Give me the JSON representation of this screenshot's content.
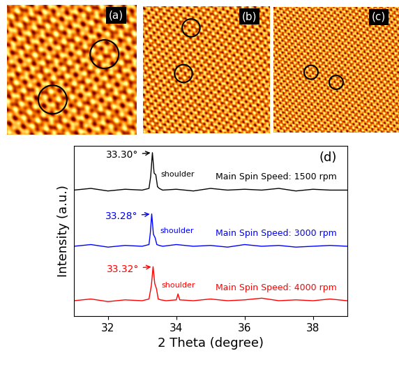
{
  "panels": [
    {
      "label": "(a)"
    },
    {
      "label": "(b)"
    },
    {
      "label": "(c)"
    }
  ],
  "chart_data": {
    "type": "line",
    "panel_label": "(d)",
    "x_label": "2 Theta (degree)",
    "y_label": "Intensity (a.u.)",
    "xlim": [
      31,
      39
    ],
    "xticks": [
      32,
      34,
      36,
      38
    ],
    "ylim": [
      0,
      10
    ],
    "tick_labels": "x",
    "grid": false,
    "series": [
      {
        "name": "Main Spin Speed: 1500 rpm",
        "color": "#000000",
        "peak_label": {
          "value": 33.3,
          "label": "33.30°"
        },
        "note": "shoulder",
        "x": [
          31.0,
          31.5,
          32.0,
          32.5,
          33.0,
          33.2,
          33.25,
          33.3,
          33.35,
          33.4,
          33.45,
          33.5,
          33.6,
          34.0,
          34.5,
          35.0,
          35.5,
          36.0,
          36.5,
          37.0,
          37.5,
          38.0,
          38.5,
          39.0
        ],
        "values": [
          7.4,
          7.5,
          7.35,
          7.45,
          7.4,
          7.5,
          8.2,
          9.6,
          8.4,
          8.3,
          7.6,
          7.5,
          7.4,
          7.45,
          7.35,
          7.5,
          7.4,
          7.45,
          7.4,
          7.5,
          7.35,
          7.45,
          7.4,
          7.4
        ]
      },
      {
        "name": "Main Spin Speed: 3000 rpm",
        "color": "#0000ff",
        "peak_label": {
          "value": 33.28,
          "label": "33.28°"
        },
        "note": "shoulder",
        "x": [
          31.0,
          31.5,
          32.0,
          32.5,
          33.0,
          33.2,
          33.24,
          33.28,
          33.33,
          33.38,
          33.43,
          33.5,
          33.6,
          34.0,
          34.5,
          35.0,
          35.5,
          36.0,
          36.5,
          37.0,
          37.5,
          38.0,
          38.5,
          39.0
        ],
        "values": [
          4.1,
          4.2,
          4.05,
          4.15,
          4.1,
          4.2,
          4.9,
          6.0,
          4.8,
          4.6,
          4.2,
          4.15,
          4.1,
          4.2,
          4.1,
          4.15,
          4.05,
          4.2,
          4.1,
          4.15,
          4.05,
          4.1,
          4.15,
          4.1
        ]
      },
      {
        "name": "Main Spin Speed: 4000 rpm",
        "color": "#ff0000",
        "peak_label": {
          "value": 33.32,
          "label": "33.32°"
        },
        "note": "shoulder",
        "x": [
          31.0,
          31.5,
          32.0,
          32.5,
          33.0,
          33.2,
          33.27,
          33.32,
          33.37,
          33.42,
          33.47,
          33.55,
          33.7,
          34.0,
          34.05,
          34.1,
          34.5,
          35.0,
          35.5,
          36.0,
          36.5,
          37.0,
          37.5,
          38.0,
          38.5,
          39.0
        ],
        "values": [
          0.9,
          1.0,
          0.85,
          0.95,
          0.9,
          1.0,
          1.8,
          2.9,
          1.9,
          1.6,
          1.0,
          0.95,
          0.9,
          0.95,
          1.3,
          0.95,
          0.9,
          1.0,
          0.9,
          0.95,
          1.05,
          0.9,
          0.95,
          0.9,
          1.0,
          0.9
        ]
      }
    ]
  }
}
